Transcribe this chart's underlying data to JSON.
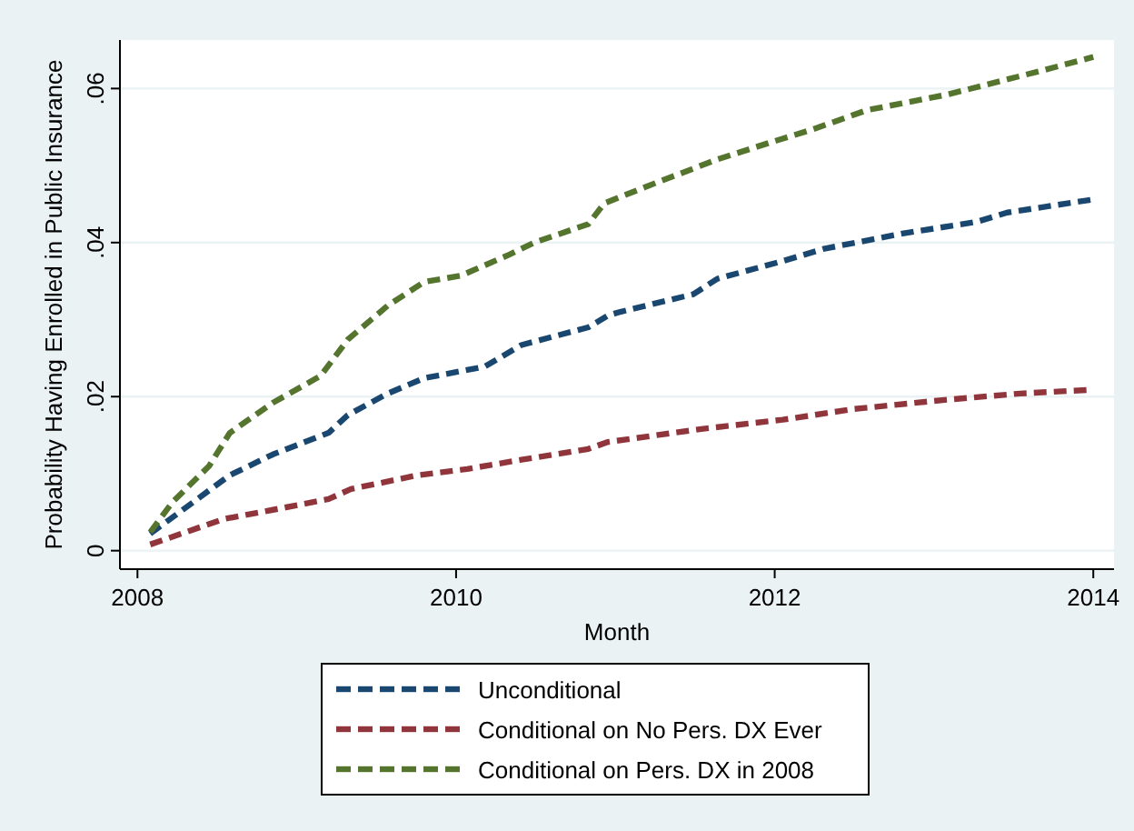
{
  "chart_data": {
    "type": "line",
    "xlabel": "Month",
    "ylabel": "Probability Having Enrolled in Public Insurance",
    "xlim": [
      2007.89,
      2014.13
    ],
    "ylim": [
      -0.0024,
      0.0663
    ],
    "xticks": [
      2008,
      2010,
      2012,
      2014
    ],
    "yticks": [
      {
        "value": 0,
        "label": "0"
      },
      {
        "value": 0.02,
        "label": ".02"
      },
      {
        "value": 0.04,
        "label": ".04"
      },
      {
        "value": 0.06,
        "label": ".06"
      }
    ],
    "grid": "y",
    "legend": "bottom",
    "line_style": "dashed",
    "marker": "none",
    "series": [
      {
        "name": "Unconditional",
        "color": "#1a476f",
        "x": [
          2008.08,
          2008.35,
          2008.58,
          2008.85,
          2009.2,
          2009.32,
          2009.57,
          2009.8,
          2010.18,
          2010.41,
          2010.83,
          2010.95,
          2011.03,
          2011.49,
          2011.64,
          2012.05,
          2012.31,
          2012.81,
          2013.27,
          2013.46,
          2014
        ],
        "values": [
          0.0022,
          0.0063,
          0.0098,
          0.0125,
          0.0153,
          0.0176,
          0.0204,
          0.0224,
          0.0239,
          0.0267,
          0.029,
          0.0305,
          0.031,
          0.0333,
          0.0353,
          0.0376,
          0.0392,
          0.0412,
          0.0427,
          0.0439,
          0.0456
        ]
      },
      {
        "name": "Conditional on No Pers. DX Ever",
        "color": "#90353b",
        "x": [
          2008.08,
          2008.54,
          2008.85,
          2009.2,
          2009.34,
          2009.76,
          2010.07,
          2010.41,
          2010.83,
          2010.95,
          2011.54,
          2012.05,
          2012.5,
          2013.08,
          2013.54,
          2014
        ],
        "values": [
          0.0008,
          0.0041,
          0.0053,
          0.0067,
          0.008,
          0.0098,
          0.0106,
          0.0118,
          0.0132,
          0.0141,
          0.0158,
          0.017,
          0.0184,
          0.0196,
          0.0204,
          0.0209
        ]
      },
      {
        "name": "Conditional on Pers. DX in 2008",
        "color": "#55752f",
        "x": [
          2008.08,
          2008.22,
          2008.45,
          2008.58,
          2008.85,
          2009.15,
          2009.32,
          2009.57,
          2009.8,
          2010.03,
          2010.33,
          2010.49,
          2010.83,
          2010.93,
          2011.26,
          2011.64,
          2012.05,
          2012.24,
          2012.58,
          2013.08,
          2013.31,
          2013.69,
          2014
        ],
        "values": [
          0.0024,
          0.0063,
          0.011,
          0.0153,
          0.0192,
          0.0227,
          0.0274,
          0.0318,
          0.0349,
          0.0357,
          0.0384,
          0.04,
          0.0424,
          0.0451,
          0.0478,
          0.0508,
          0.0535,
          0.0547,
          0.0572,
          0.0592,
          0.0604,
          0.0624,
          0.0641
        ]
      }
    ]
  }
}
